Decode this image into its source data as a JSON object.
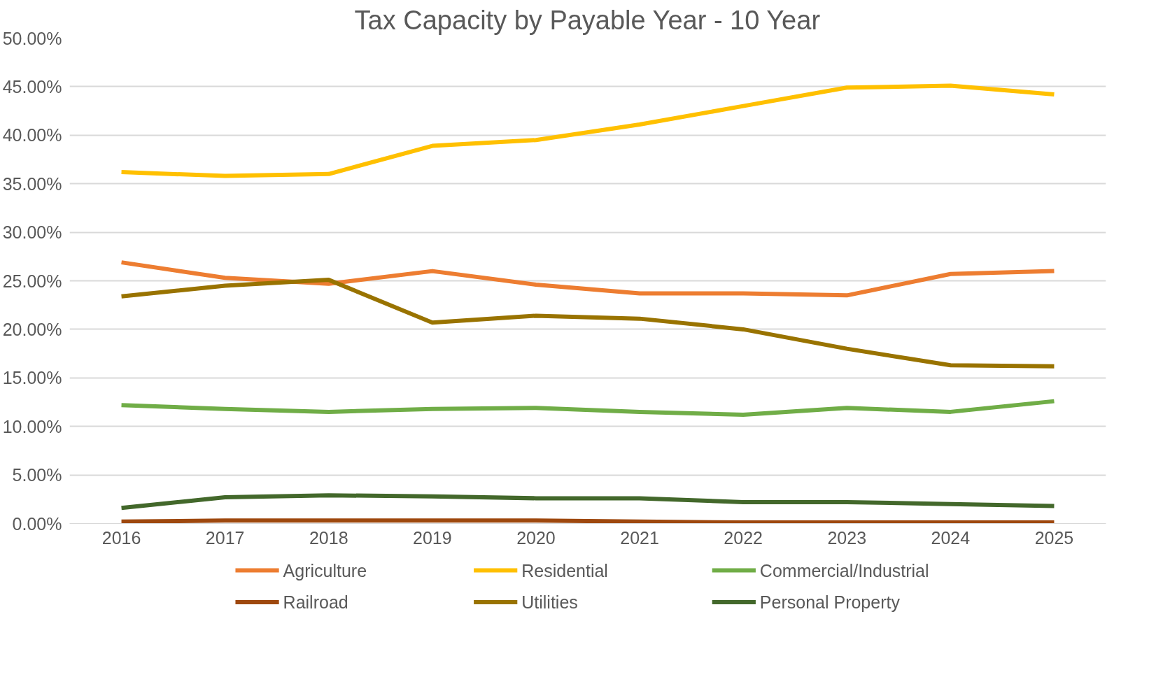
{
  "chart_data": {
    "type": "line",
    "title": "Tax Capacity by Payable Year - 10 Year",
    "categories": [
      "2016",
      "2017",
      "2018",
      "2019",
      "2020",
      "2021",
      "2022",
      "2023",
      "2024",
      "2025"
    ],
    "series": [
      {
        "name": "Agriculture",
        "color": "#ed7d31",
        "values": [
          26.9,
          25.3,
          24.7,
          26.0,
          24.6,
          23.7,
          23.7,
          23.5,
          25.7,
          26.0
        ]
      },
      {
        "name": "Residential",
        "color": "#ffc000",
        "values": [
          36.2,
          35.8,
          36.0,
          38.9,
          39.5,
          41.1,
          43.0,
          44.9,
          45.1,
          44.2
        ]
      },
      {
        "name": "Commercial/Industrial",
        "color": "#70ad47",
        "values": [
          12.2,
          11.8,
          11.5,
          11.8,
          11.9,
          11.5,
          11.2,
          11.9,
          11.5,
          12.6
        ]
      },
      {
        "name": "Railroad",
        "color": "#9e480e",
        "values": [
          0.2,
          0.3,
          0.3,
          0.3,
          0.3,
          0.2,
          0.1,
          0.1,
          0.1,
          0.1
        ]
      },
      {
        "name": "Utilities",
        "color": "#997300",
        "values": [
          23.4,
          24.5,
          25.1,
          20.7,
          21.4,
          21.1,
          20.0,
          18.0,
          16.3,
          16.2
        ]
      },
      {
        "name": "Personal Property",
        "color": "#43682b",
        "values": [
          1.6,
          2.7,
          2.9,
          2.8,
          2.6,
          2.6,
          2.2,
          2.2,
          2.0,
          1.8
        ]
      }
    ],
    "ylim": [
      0,
      50
    ],
    "yticks": [
      {
        "value": 0,
        "label": "0.00%"
      },
      {
        "value": 5,
        "label": "5.00%"
      },
      {
        "value": 10,
        "label": "10.00%"
      },
      {
        "value": 15,
        "label": "15.00%"
      },
      {
        "value": 20,
        "label": "20.00%"
      },
      {
        "value": 25,
        "label": "25.00%"
      },
      {
        "value": 30,
        "label": "30.00%"
      },
      {
        "value": 35,
        "label": "35.00%"
      },
      {
        "value": 40,
        "label": "40.00%"
      },
      {
        "value": 45,
        "label": "45.00%"
      },
      {
        "value": 50,
        "label": "50.00%"
      }
    ],
    "grid": "y",
    "legend": "bottom",
    "marker": "none",
    "line_style": "solid"
  }
}
